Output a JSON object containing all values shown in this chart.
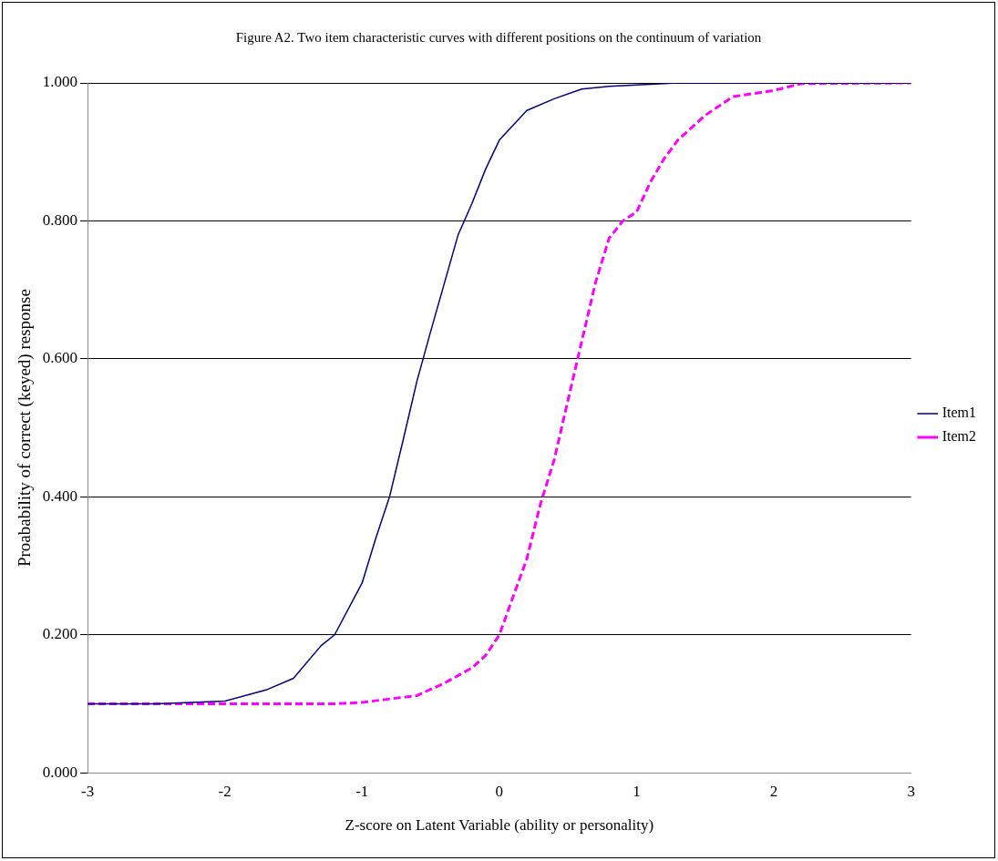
{
  "chart_data": {
    "type": "line",
    "title": "Figure A2. Two item characteristic curves with different positions on the continuum of variation",
    "xlabel": "Z-score on Latent Variable (ability or personality)",
    "ylabel": "Proabability of correct (keyed) response",
    "xlim": [
      -3,
      3
    ],
    "xticks": [
      -3,
      -2,
      -1,
      0,
      1,
      2,
      3
    ],
    "ylim": [
      0,
      1
    ],
    "yticks": [
      {
        "value": 0,
        "label": "0.000"
      },
      {
        "value": 0.2,
        "label": "0.200"
      },
      {
        "value": 0.4,
        "label": "0.400"
      },
      {
        "value": 0.6,
        "label": "0.600"
      },
      {
        "value": 0.8,
        "label": "0.800"
      },
      {
        "value": 1,
        "label": "1.000"
      }
    ],
    "grid": "y",
    "legend": "right",
    "marker": "none",
    "series": [
      {
        "name": "Item1",
        "color": "#000080",
        "line_style": "solid",
        "x": [
          -3,
          -2.5,
          -2,
          -1.7,
          -1.5,
          -1.3,
          -1.2,
          -1,
          -0.9,
          -0.8,
          -0.7,
          -0.6,
          -0.5,
          -0.4,
          -0.3,
          -0.2,
          -0.1,
          0,
          0.2,
          0.4,
          0.6,
          0.8,
          1,
          1.3,
          2,
          3
        ],
        "values": [
          0.1,
          0.1,
          0.104,
          0.12,
          0.137,
          0.184,
          0.2,
          0.275,
          0.34,
          0.4,
          0.483,
          0.568,
          0.64,
          0.71,
          0.78,
          0.825,
          0.875,
          0.917,
          0.96,
          0.977,
          0.991,
          0.995,
          0.997,
          1,
          1,
          1
        ]
      },
      {
        "name": "Item2",
        "color": "#ff00ff",
        "line_style": "dashed",
        "x": [
          -3,
          -2,
          -1.2,
          -1,
          -0.6,
          -0.4,
          -0.2,
          -0.1,
          0,
          0.1,
          0.2,
          0.3,
          0.4,
          0.5,
          0.6,
          0.7,
          0.8,
          0.9,
          1,
          1.1,
          1.2,
          1.3,
          1.5,
          1.7,
          2,
          2.2,
          3
        ],
        "values": [
          0.1,
          0.1,
          0.1,
          0.102,
          0.112,
          0.13,
          0.152,
          0.17,
          0.2,
          0.255,
          0.31,
          0.39,
          0.454,
          0.54,
          0.625,
          0.71,
          0.775,
          0.8,
          0.813,
          0.856,
          0.89,
          0.917,
          0.953,
          0.98,
          0.989,
          0.999,
          1
        ]
      }
    ]
  }
}
